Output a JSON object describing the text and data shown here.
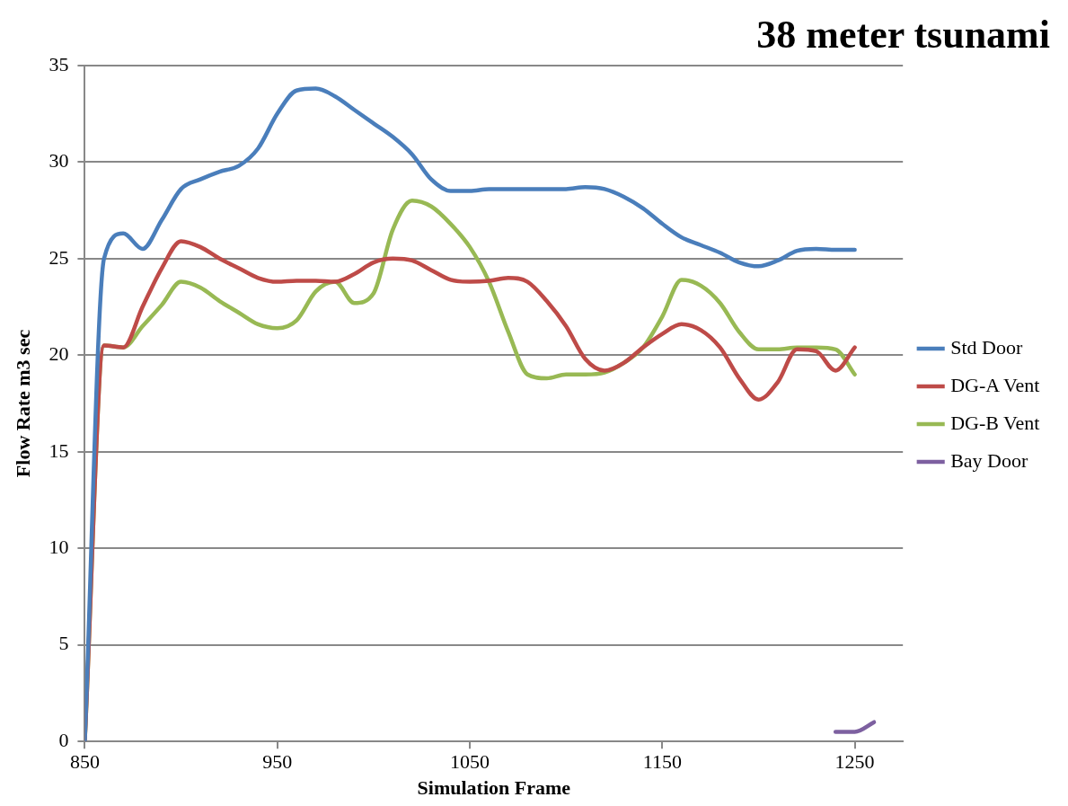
{
  "chart_data": {
    "type": "line",
    "title": "38 meter tsunami",
    "xlabel": "Simulation Frame",
    "ylabel": "Flow Rate m3 sec",
    "x": [
      850,
      860,
      870,
      880,
      890,
      900,
      910,
      920,
      930,
      940,
      950,
      960,
      970,
      980,
      990,
      1000,
      1010,
      1020,
      1030,
      1040,
      1050,
      1060,
      1070,
      1080,
      1090,
      1100,
      1110,
      1120,
      1130,
      1140,
      1150,
      1160,
      1170,
      1180,
      1190,
      1200,
      1210,
      1220,
      1230,
      1240,
      1250
    ],
    "series": [
      {
        "name": "Std Door",
        "color": "#4a7ebb",
        "values": [
          0,
          25.0,
          26.3,
          25.5,
          27.0,
          28.6,
          29.1,
          29.5,
          29.8,
          30.7,
          32.5,
          33.7,
          33.8,
          33.4,
          32.7,
          32.0,
          31.3,
          30.4,
          29.1,
          28.5,
          28.5,
          28.6,
          28.6,
          28.6,
          28.6,
          28.6,
          28.7,
          28.6,
          28.2,
          27.6,
          26.8,
          26.1,
          25.7,
          25.3,
          24.8,
          24.6,
          24.9,
          25.4,
          25.5,
          25.45,
          25.45
        ]
      },
      {
        "name": "DG-A Vent",
        "color": "#be4b48",
        "values": [
          0,
          20.5,
          20.4,
          22.5,
          24.5,
          25.9,
          25.6,
          25.0,
          24.5,
          24.0,
          23.8,
          23.85,
          23.85,
          23.8,
          24.2,
          24.8,
          25.0,
          24.9,
          24.4,
          23.9,
          23.8,
          23.85,
          24.0,
          23.8,
          22.8,
          21.5,
          19.8,
          19.2,
          19.6,
          20.4,
          21.1,
          21.6,
          21.3,
          20.4,
          18.8,
          17.7,
          18.6,
          20.3,
          20.2,
          19.2,
          20.4
        ]
      },
      {
        "name": "DG-B Vent",
        "color": "#98b954",
        "values": [
          0,
          20.5,
          20.4,
          21.5,
          22.6,
          23.8,
          23.5,
          22.8,
          22.2,
          21.6,
          21.4,
          21.8,
          23.3,
          23.8,
          22.7,
          23.2,
          26.5,
          28.0,
          27.7,
          26.8,
          25.6,
          23.8,
          21.2,
          19.0,
          18.8,
          19.0,
          19.0,
          19.1,
          19.6,
          20.4,
          22.0,
          23.9,
          23.6,
          22.7,
          21.2,
          20.3,
          20.3,
          20.4,
          20.4,
          20.3,
          19.0
        ]
      },
      {
        "name": "Bay Door",
        "color": "#7d60a0",
        "x": [
          1240,
          1250,
          1260
        ],
        "values": [
          0.5,
          0.5,
          1.0
        ]
      }
    ],
    "xlim": [
      850,
      1275
    ],
    "xticks": [
      850,
      950,
      1050,
      1150,
      1250
    ],
    "ylim": [
      0,
      35
    ],
    "yticks": [
      0,
      5,
      10,
      15,
      20,
      25,
      30,
      35
    ],
    "grid": "y",
    "legend": "right",
    "marker": "none",
    "line_style": "solid"
  }
}
